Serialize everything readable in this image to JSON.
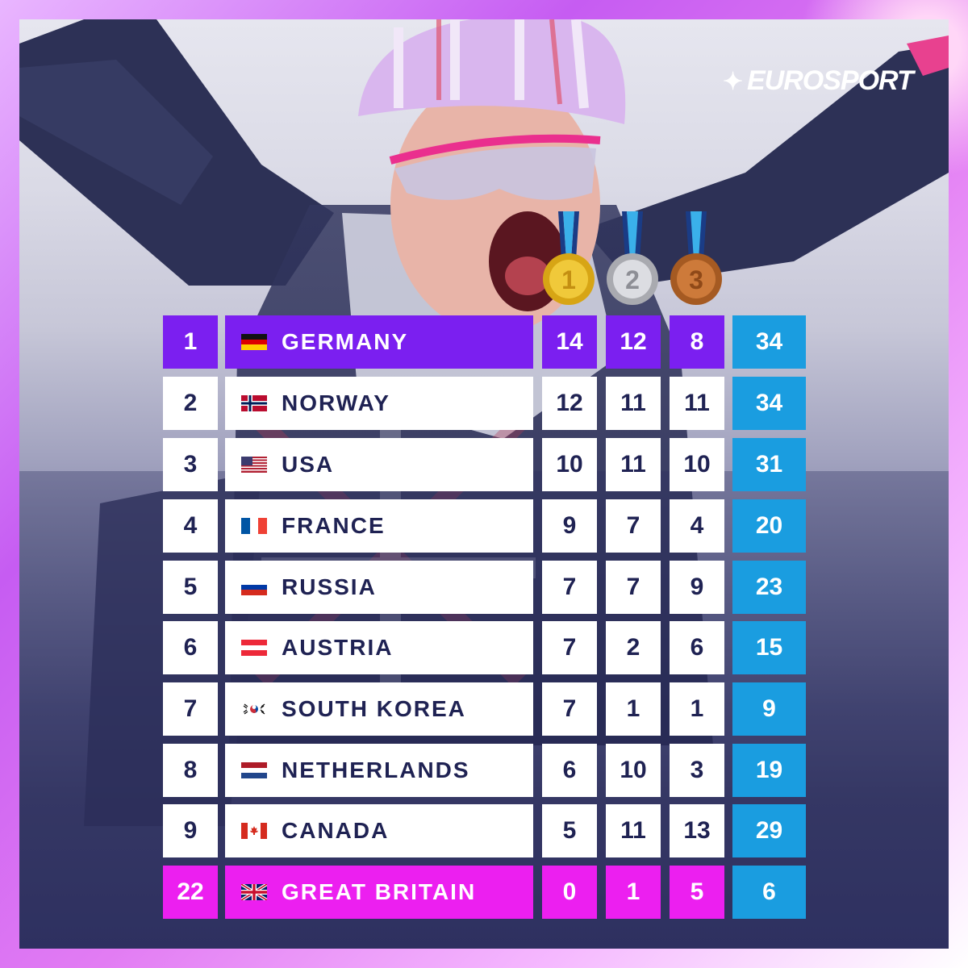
{
  "brand": {
    "logo_text": "EUROSPORT"
  },
  "medal_headers": [
    {
      "label": "1",
      "kind": "gold-medal-icon"
    },
    {
      "label": "2",
      "kind": "silver-medal-icon"
    },
    {
      "label": "3",
      "kind": "bronze-medal-icon"
    }
  ],
  "colors": {
    "highlight_leader": "#7b1ff0",
    "highlight_team": "#ec1ff0",
    "total_column": "#1a9de0",
    "text_dark": "#1f2253"
  },
  "rows": [
    {
      "rank": "1",
      "country": "GERMANY",
      "flag": "germany-flag-icon",
      "gold": "14",
      "silver": "12",
      "bronze": "8",
      "total": "34"
    },
    {
      "rank": "2",
      "country": "NORWAY",
      "flag": "norway-flag-icon",
      "gold": "12",
      "silver": "11",
      "bronze": "11",
      "total": "34"
    },
    {
      "rank": "3",
      "country": "USA",
      "flag": "usa-flag-icon",
      "gold": "10",
      "silver": "11",
      "bronze": "10",
      "total": "31"
    },
    {
      "rank": "4",
      "country": "FRANCE",
      "flag": "france-flag-icon",
      "gold": "9",
      "silver": "7",
      "bronze": "4",
      "total": "20"
    },
    {
      "rank": "5",
      "country": "RUSSIA",
      "flag": "russia-flag-icon",
      "gold": "7",
      "silver": "7",
      "bronze": "9",
      "total": "23"
    },
    {
      "rank": "6",
      "country": "AUSTRIA",
      "flag": "austria-flag-icon",
      "gold": "7",
      "silver": "2",
      "bronze": "6",
      "total": "15"
    },
    {
      "rank": "7",
      "country": "SOUTH KOREA",
      "flag": "south-korea-flag-icon",
      "gold": "7",
      "silver": "1",
      "bronze": "1",
      "total": "9"
    },
    {
      "rank": "8",
      "country": "NETHERLANDS",
      "flag": "netherlands-flag-icon",
      "gold": "6",
      "silver": "10",
      "bronze": "3",
      "total": "19"
    },
    {
      "rank": "9",
      "country": "CANADA",
      "flag": "canada-flag-icon",
      "gold": "5",
      "silver": "11",
      "bronze": "13",
      "total": "29"
    },
    {
      "rank": "22",
      "country": "GREAT BRITAIN",
      "flag": "great-britain-flag-icon",
      "gold": "0",
      "silver": "1",
      "bronze": "5",
      "total": "6"
    }
  ]
}
